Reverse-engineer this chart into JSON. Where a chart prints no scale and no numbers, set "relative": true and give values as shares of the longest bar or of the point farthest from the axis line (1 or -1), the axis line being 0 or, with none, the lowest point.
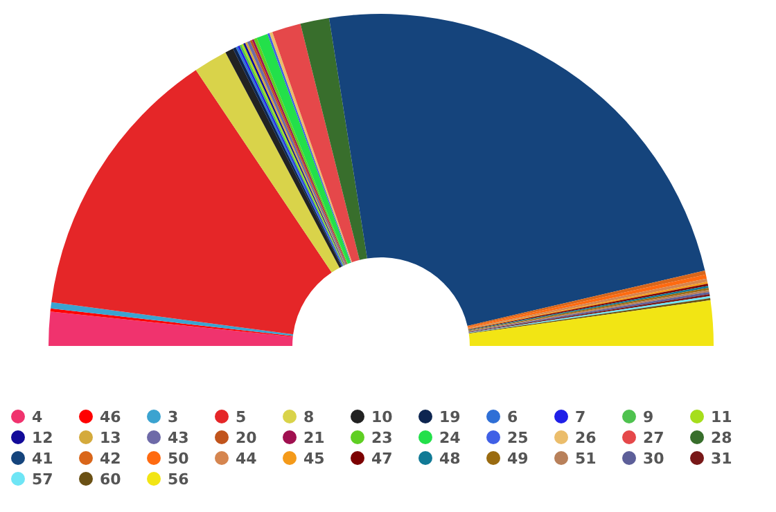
{
  "chart_data": {
    "type": "donut",
    "relative": true,
    "legend": "bottom",
    "categories": [
      "4",
      "46",
      "3",
      "5",
      "8",
      "10",
      "19",
      "6",
      "7",
      "9",
      "11",
      "12",
      "13",
      "43",
      "20",
      "21",
      "23",
      "24",
      "25",
      "26",
      "27",
      "28",
      "41",
      "42",
      "50",
      "44",
      "45",
      "47",
      "48",
      "49",
      "51",
      "30",
      "31",
      "57",
      "60",
      "56"
    ],
    "values": [
      3.3,
      0.3,
      0.6,
      27.0,
      3.3,
      0.8,
      0.3,
      0.2,
      0.2,
      0.2,
      0.2,
      0.2,
      0.2,
      0.3,
      0.2,
      0.2,
      0.3,
      1.1,
      0.2,
      0.3,
      2.8,
      2.8,
      47.7,
      0.4,
      0.4,
      0.3,
      0.2,
      0.2,
      0.2,
      0.2,
      0.2,
      0.2,
      0.2,
      0.2,
      0.2,
      4.4
    ],
    "colors": [
      "#f0336e",
      "#ff0000",
      "#3ba3d0",
      "#e52628",
      "#d9d34a",
      "#222222",
      "#0d2550",
      "#2f6fd6",
      "#1f1fe8",
      "#4fc24f",
      "#a6de1c",
      "#120a99",
      "#d4aa3c",
      "#6e6aa8",
      "#c1541c",
      "#a01050",
      "#5fcf23",
      "#23e04a",
      "#4060e6",
      "#ebbd6b",
      "#e5484a",
      "#386e2c",
      "#15447c",
      "#d9661a",
      "#ff6a10",
      "#d5854f",
      "#f49a1a",
      "#7c0000",
      "#117a96",
      "#9a6b10",
      "#b8805a",
      "#5d5f99",
      "#781818",
      "#6ee5f5",
      "#6a5014",
      "#f2e514"
    ]
  }
}
